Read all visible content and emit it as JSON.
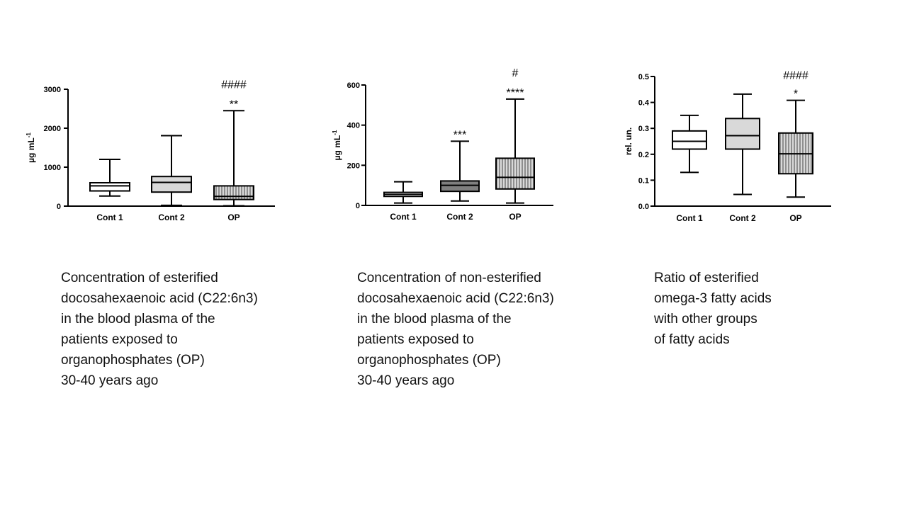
{
  "chart_data": [
    {
      "type": "box",
      "ylabel": "µg mL",
      "ylabel_superscript": "-1",
      "ylim": [
        0,
        3000
      ],
      "yticks": [
        0,
        1000,
        2000,
        3000
      ],
      "tick_labels": [
        "0",
        "1000",
        "2000",
        "3000"
      ],
      "grid": false,
      "categories": [
        "Cont 1",
        "Cont 2",
        "OP"
      ],
      "boxes": [
        {
          "min": 260,
          "q1": 390,
          "median": 520,
          "q3": 600,
          "max": 1200,
          "fill": "#ffffff",
          "pattern": "none"
        },
        {
          "min": 20,
          "q1": 360,
          "median": 610,
          "q3": 760,
          "max": 1810,
          "fill": "#d9d9d9",
          "pattern": "none"
        },
        {
          "min": 10,
          "q1": 170,
          "median": 250,
          "q3": 520,
          "max": 2450,
          "fill": "#d9d9d9",
          "pattern": "vertical"
        }
      ],
      "annotations": [
        {
          "category": "OP",
          "lines": [
            "####",
            "**"
          ]
        }
      ]
    },
    {
      "type": "box",
      "ylabel": "µg mL",
      "ylabel_superscript": "-1",
      "ylim": [
        0,
        600
      ],
      "yticks": [
        0,
        200,
        400,
        600
      ],
      "tick_labels": [
        "0",
        "200",
        "400",
        "600"
      ],
      "grid": false,
      "categories": [
        "Cont 1",
        "Cont 2",
        "OP"
      ],
      "boxes": [
        {
          "min": 12,
          "q1": 45,
          "median": 55,
          "q3": 65,
          "max": 118,
          "fill": "#ffffff",
          "pattern": "none"
        },
        {
          "min": 22,
          "q1": 70,
          "median": 100,
          "q3": 122,
          "max": 320,
          "fill": "#7f7f7f",
          "pattern": "none"
        },
        {
          "min": 12,
          "q1": 82,
          "median": 140,
          "q3": 235,
          "max": 530,
          "fill": "#d9d9d9",
          "pattern": "vertical"
        }
      ],
      "annotations": [
        {
          "category": "Cont 2",
          "lines": [
            "***"
          ]
        },
        {
          "category": "OP",
          "lines": [
            "#",
            "****"
          ]
        }
      ]
    },
    {
      "type": "box",
      "ylabel": "rel. un.",
      "ylabel_superscript": "",
      "ylim": [
        0,
        0.5
      ],
      "yticks": [
        0,
        0.1,
        0.2,
        0.3,
        0.4,
        0.5
      ],
      "tick_labels": [
        "0.0",
        "0.1",
        "0.2",
        "0.3",
        "0.4",
        "0.5"
      ],
      "grid": false,
      "categories": [
        "Cont 1",
        "Cont 2",
        "OP"
      ],
      "boxes": [
        {
          "min": 0.13,
          "q1": 0.22,
          "median": 0.25,
          "q3": 0.29,
          "max": 0.35,
          "fill": "#ffffff",
          "pattern": "none"
        },
        {
          "min": 0.045,
          "q1": 0.22,
          "median": 0.272,
          "q3": 0.338,
          "max": 0.432,
          "fill": "#d9d9d9",
          "pattern": "none"
        },
        {
          "min": 0.035,
          "q1": 0.125,
          "median": 0.202,
          "q3": 0.282,
          "max": 0.408,
          "fill": "#d9d9d9",
          "pattern": "vertical"
        }
      ],
      "annotations": [
        {
          "category": "OP",
          "lines": [
            "####",
            "*"
          ]
        }
      ]
    }
  ],
  "captions": [
    "Concentration of esterified\ndocosahexaenoic acid (C22:6n3)\nin the blood plasma of the\npatients exposed to\norganophosphates (OP)\n30-40 years ago",
    "Concentration of non-esterified\ndocosahexaenoic acid (C22:6n3)\nin the blood plasma of the\npatients exposed to\norganophosphates (OP)\n30-40 years ago",
    "Ratio of esterified\nomega-3 fatty acids\nwith other groups\nof fatty acids"
  ]
}
